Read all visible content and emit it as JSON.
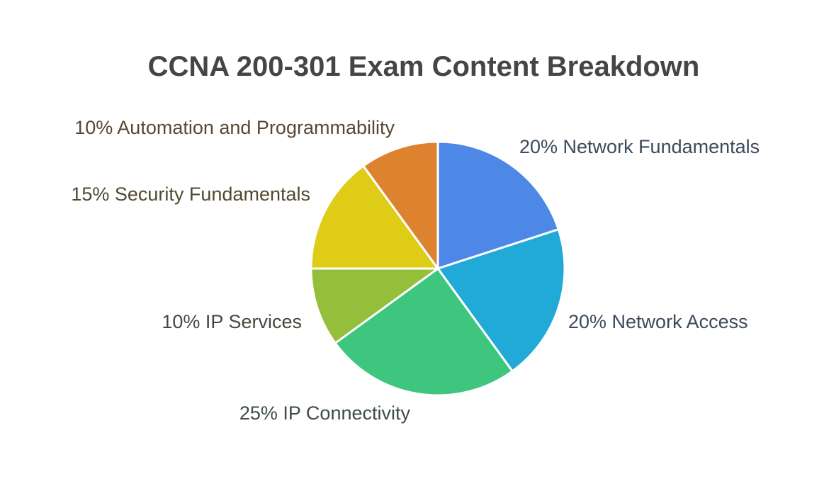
{
  "chart_data": {
    "type": "pie",
    "title": "CCNA 200-301 Exam Content Breakdown",
    "categories": [
      "Network Fundamentals",
      "Network Access",
      "IP Connectivity",
      "IP Services",
      "Security Fundamentals",
      "Automation and Programmability"
    ],
    "values": [
      20,
      20,
      25,
      10,
      15,
      10
    ],
    "labels": [
      "20% Network Fundamentals",
      "20% Network Access",
      "25% IP Connectivity",
      "10% IP Services",
      "15% Security Fundamentals",
      "10% Automation and Programmability"
    ],
    "colors": [
      "#4e88e6",
      "#21a9d8",
      "#3ec67f",
      "#94bf3a",
      "#dfcc17",
      "#dd8330"
    ],
    "label_colors": [
      "#3d4a5c",
      "#3d4a5c",
      "#3f4a4a",
      "#454a3d",
      "#4f4a2f",
      "#5a4633"
    ],
    "start": "12 o'clock",
    "direction": "clockwise"
  }
}
